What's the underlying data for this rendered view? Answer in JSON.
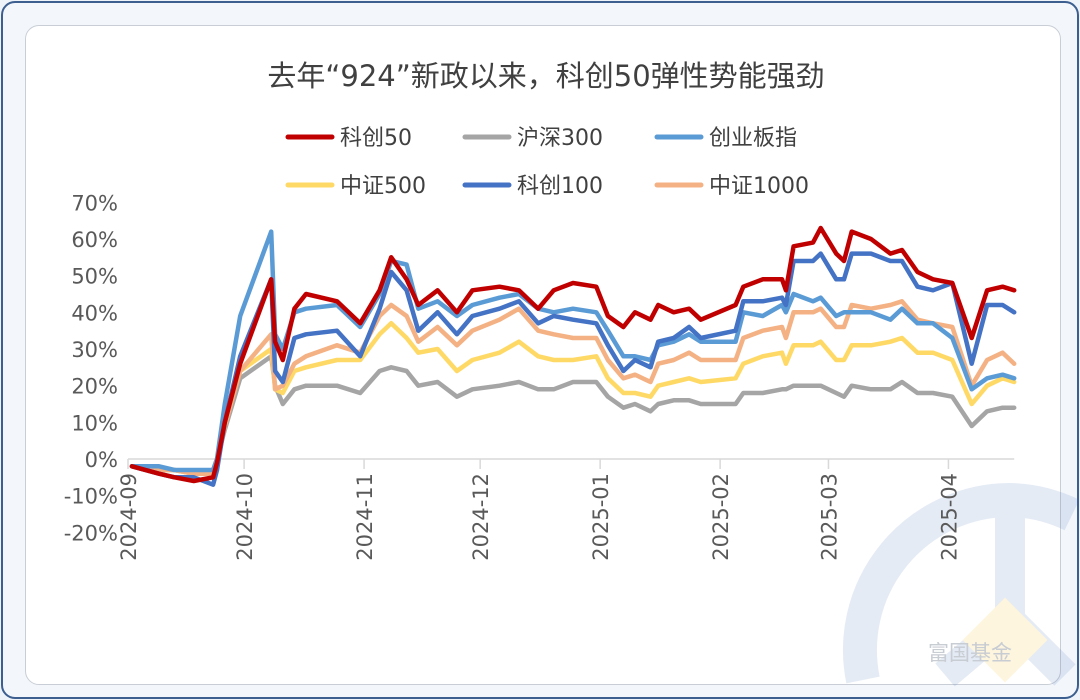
{
  "chart_data": {
    "type": "line",
    "title": "去年“924”新政以来，科创50弹性势能强劲",
    "xlabel": "",
    "ylabel": "",
    "ylim": [
      -20,
      70
    ],
    "yticks": [
      "70%",
      "60%",
      "50%",
      "40%",
      "30%",
      "20%",
      "10%",
      "0%",
      "-10%",
      "-20%"
    ],
    "yticks_values": [
      70,
      60,
      50,
      40,
      30,
      20,
      10,
      0,
      -10,
      -20
    ],
    "xticks": [
      "2024-09",
      "2024-10",
      "2024-11",
      "2024-12",
      "2025-01",
      "2025-02",
      "2025-03",
      "2025-04"
    ],
    "grid": false,
    "legend_placement": "top",
    "x": [
      "2024-09-02",
      "2024-09-09",
      "2024-09-13",
      "2024-09-18",
      "2024-09-23",
      "2024-09-24",
      "2024-09-26",
      "2024-09-30",
      "2024-10-08",
      "2024-10-09",
      "2024-10-11",
      "2024-10-14",
      "2024-10-17",
      "2024-10-25",
      "2024-10-31",
      "2024-11-05",
      "2024-11-08",
      "2024-11-12",
      "2024-11-15",
      "2024-11-20",
      "2024-11-25",
      "2024-11-29",
      "2024-12-06",
      "2024-12-11",
      "2024-12-16",
      "2024-12-20",
      "2024-12-25",
      "2024-12-31",
      "2025-01-03",
      "2025-01-07",
      "2025-01-10",
      "2025-01-14",
      "2025-01-16",
      "2025-01-20",
      "2025-01-24",
      "2025-01-27",
      "2025-02-05",
      "2025-02-07",
      "2025-02-12",
      "2025-02-17",
      "2025-02-18",
      "2025-02-20",
      "2025-02-25",
      "2025-02-27",
      "2025-03-03",
      "2025-03-05",
      "2025-03-07",
      "2025-03-12",
      "2025-03-17",
      "2025-03-20",
      "2025-03-24",
      "2025-03-28",
      "2025-04-02",
      "2025-04-07",
      "2025-04-11",
      "2025-04-15",
      "2025-04-18"
    ],
    "series": [
      {
        "name": "科创50",
        "color": "#C00000",
        "values": [
          -2,
          -4,
          -5,
          -6,
          -5,
          -1,
          10,
          26,
          49,
          32,
          27,
          41,
          45,
          43,
          37,
          46,
          55,
          49,
          42,
          46,
          40,
          46,
          47,
          46,
          41,
          46,
          48,
          47,
          39,
          36,
          40,
          38,
          42,
          40,
          41,
          38,
          42,
          47,
          49,
          49,
          46,
          58,
          59,
          63,
          56,
          54,
          62,
          60,
          56,
          57,
          51,
          49,
          48,
          33,
          46,
          47,
          46
        ]
      },
      {
        "name": "沪深300",
        "color": "#A5A5A5",
        "values": [
          -2,
          -3,
          -3,
          -4,
          -3,
          0,
          8,
          22,
          28,
          20,
          15,
          19,
          20,
          20,
          18,
          24,
          25,
          24,
          20,
          21,
          17,
          19,
          20,
          21,
          19,
          19,
          21,
          21,
          17,
          14,
          15,
          13,
          15,
          16,
          16,
          15,
          15,
          18,
          18,
          19,
          19,
          20,
          20,
          20,
          18,
          17,
          20,
          19,
          19,
          21,
          18,
          18,
          17,
          9,
          13,
          14,
          14
        ]
      },
      {
        "name": "创业板指",
        "color": "#5B9BD5",
        "values": [
          -2,
          -2,
          -3,
          -3,
          -3,
          0,
          15,
          39,
          62,
          34,
          30,
          40,
          41,
          42,
          36,
          45,
          54,
          53,
          41,
          43,
          39,
          42,
          44,
          45,
          41,
          40,
          41,
          40,
          35,
          28,
          28,
          27,
          31,
          32,
          34,
          32,
          32,
          40,
          39,
          42,
          40,
          45,
          43,
          44,
          39,
          40,
          40,
          40,
          38,
          41,
          37,
          37,
          33,
          19,
          22,
          23,
          22
        ]
      },
      {
        "name": "中证500",
        "color": "#FFD966",
        "values": [
          -2,
          -3,
          -3,
          -4,
          -4,
          -1,
          10,
          24,
          30,
          19,
          18,
          24,
          25,
          27,
          27,
          34,
          37,
          33,
          29,
          30,
          24,
          27,
          29,
          32,
          28,
          27,
          27,
          28,
          22,
          18,
          18,
          17,
          20,
          21,
          22,
          21,
          22,
          26,
          28,
          29,
          26,
          31,
          31,
          32,
          27,
          27,
          31,
          31,
          32,
          33,
          29,
          29,
          27,
          15,
          20,
          22,
          21
        ]
      },
      {
        "name": "科创100",
        "color": "#4472C4",
        "values": [
          -2,
          -4,
          -5,
          -5,
          -7,
          -3,
          10,
          28,
          49,
          24,
          21,
          33,
          34,
          35,
          28,
          41,
          51,
          46,
          35,
          40,
          34,
          39,
          41,
          43,
          37,
          39,
          38,
          37,
          31,
          24,
          27,
          25,
          32,
          33,
          36,
          33,
          35,
          43,
          43,
          44,
          42,
          54,
          54,
          56,
          49,
          49,
          56,
          56,
          54,
          54,
          47,
          46,
          48,
          26,
          42,
          42,
          40
        ]
      },
      {
        "name": "中证1000",
        "color": "#F4B183",
        "values": [
          -2,
          -3,
          -3,
          -4,
          -4,
          -1,
          9,
          24,
          34,
          19,
          20,
          26,
          28,
          31,
          29,
          39,
          42,
          39,
          32,
          36,
          31,
          35,
          38,
          41,
          35,
          34,
          33,
          33,
          27,
          22,
          23,
          21,
          26,
          27,
          29,
          27,
          27,
          33,
          35,
          36,
          33,
          40,
          40,
          41,
          36,
          36,
          42,
          41,
          42,
          43,
          38,
          37,
          36,
          20,
          27,
          29,
          26
        ]
      }
    ]
  },
  "watermark": {
    "text": "富国基金"
  }
}
